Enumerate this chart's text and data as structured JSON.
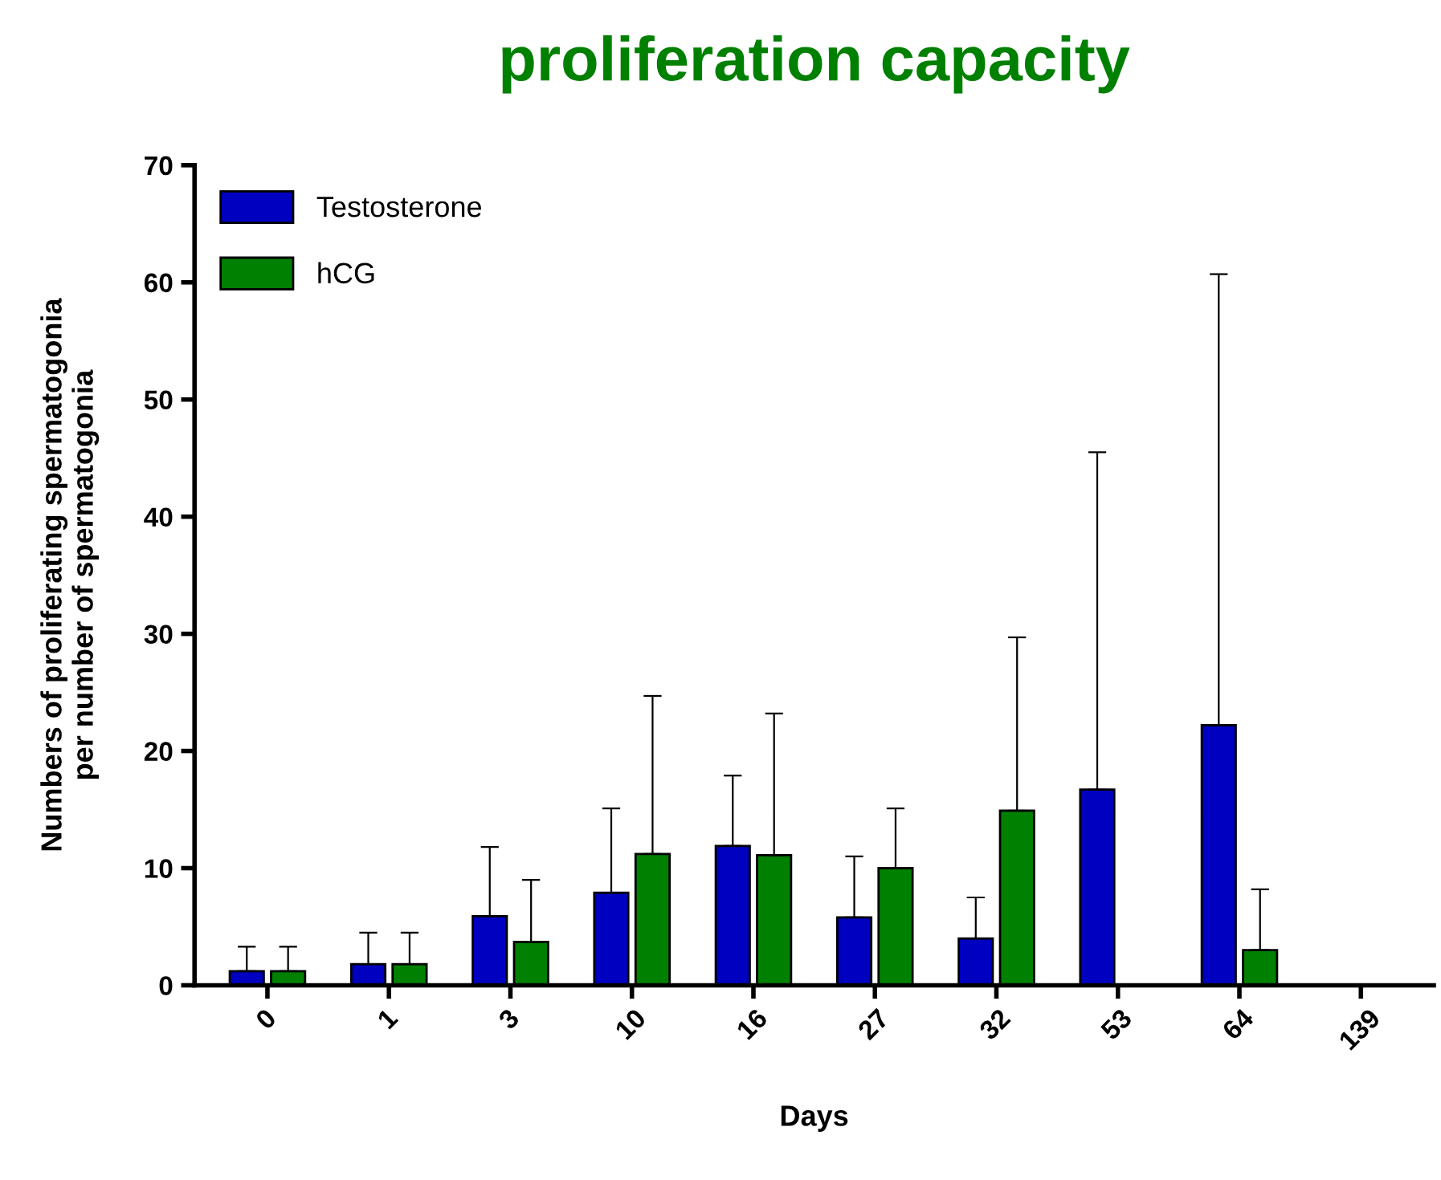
{
  "chart_data": {
    "type": "bar",
    "title": "proliferation capacity",
    "xlabel": "Days",
    "ylabel": "Numbers of proliferating spermatogonia\nper number of spermatogonia",
    "categories": [
      "0",
      "1",
      "3",
      "10",
      "16",
      "27",
      "32",
      "53",
      "64",
      "139"
    ],
    "series": [
      {
        "name": "Testosterone",
        "color": "#0000c0",
        "values": [
          1.2,
          1.8,
          5.9,
          7.9,
          11.9,
          5.8,
          4.0,
          16.7,
          22.2,
          null
        ],
        "errors": [
          [
            1.2,
            3.3
          ],
          [
            1.8,
            4.5
          ],
          [
            5.9,
            11.8
          ],
          [
            7.9,
            15.1
          ],
          [
            11.9,
            17.9
          ],
          [
            5.8,
            11.0
          ],
          [
            4.0,
            7.5
          ],
          [
            16.7,
            45.5
          ],
          [
            22.2,
            60.7
          ],
          null
        ]
      },
      {
        "name": "hCG",
        "color": "#008000",
        "values": [
          1.2,
          1.8,
          3.7,
          11.2,
          11.1,
          10.0,
          14.9,
          null,
          3.0,
          null
        ],
        "errors": [
          [
            1.2,
            3.3
          ],
          [
            1.8,
            4.5
          ],
          [
            3.7,
            9.0
          ],
          [
            11.2,
            24.7
          ],
          [
            11.1,
            23.2
          ],
          [
            10.0,
            15.1
          ],
          [
            14.9,
            29.7
          ],
          null,
          [
            3.0,
            8.2
          ],
          null
        ]
      }
    ],
    "ylim": [
      0,
      70
    ],
    "yticks": [
      0,
      10,
      20,
      30,
      40,
      50,
      60,
      70
    ],
    "grid": false,
    "legend": "top left"
  }
}
